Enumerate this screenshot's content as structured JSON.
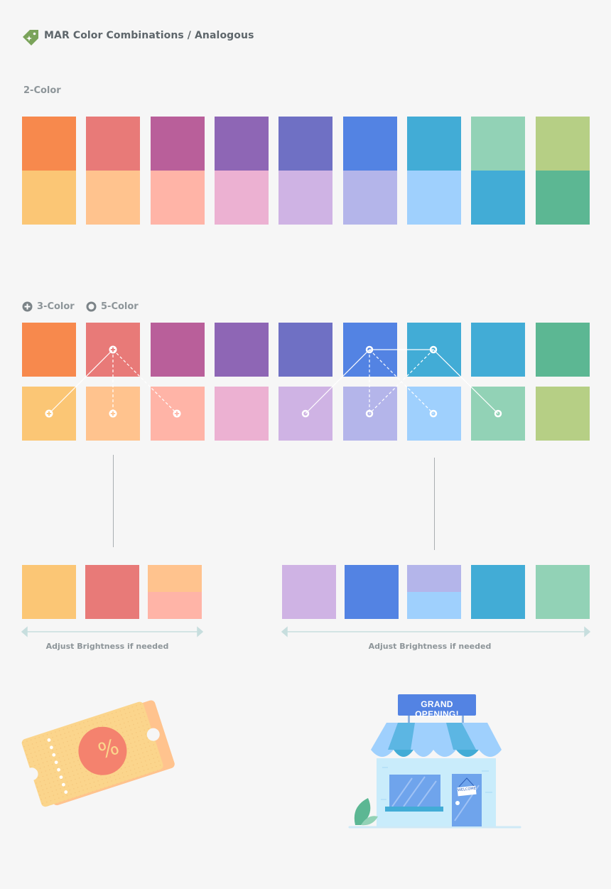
{
  "header": {
    "title": "MAR Color Combinations / Analogous",
    "tag_icon": "tag-icon",
    "tag_color": "#7aa35a"
  },
  "two_color": {
    "label": "2-Color",
    "pairs": [
      {
        "top": "#f7894d",
        "bottom": "#fbc675"
      },
      {
        "top": "#e87a78",
        "bottom": "#ffc38e"
      },
      {
        "top": "#b95f9a",
        "bottom": "#ffb4a7"
      },
      {
        "top": "#8e66b5",
        "bottom": "#ecb1d2"
      },
      {
        "top": "#6f70c4",
        "bottom": "#cfb3e4"
      },
      {
        "top": "#5383e3",
        "bottom": "#b4b5ea"
      },
      {
        "top": "#42acd6",
        "bottom": "#9fd0fd"
      },
      {
        "top": "#92d2b6",
        "bottom": "#42acd6"
      },
      {
        "top": "#b6cf85",
        "bottom": "#5cb793"
      }
    ]
  },
  "multi_color": {
    "legend_3": "3-Color",
    "legend_5": "5-Color",
    "legend_3_icon": "plus-circle-icon",
    "legend_5_icon": "ring-icon",
    "top_row": [
      "#f7894d",
      "#e87a78",
      "#b95f9a",
      "#8e66b5",
      "#6f70c4",
      "#5383e3",
      "#42acd6",
      "#42acd6",
      "#5cb793"
    ],
    "bottom_row": [
      "#fbc675",
      "#ffc38e",
      "#ffb4a7",
      "#ecb1d2",
      "#cfb3e4",
      "#b4b5ea",
      "#9fd0fd",
      "#92d2b6",
      "#b6cf85"
    ]
  },
  "result_3": {
    "swatches": [
      {
        "colors": [
          "#fbc675"
        ]
      },
      {
        "colors": [
          "#e87a78"
        ]
      },
      {
        "colors": [
          "#ffc38e",
          "#ffb4a7"
        ]
      }
    ],
    "caption": "Adjust Brightness if needed"
  },
  "result_5": {
    "swatches": [
      {
        "colors": [
          "#cfb3e4"
        ]
      },
      {
        "colors": [
          "#5383e3"
        ]
      },
      {
        "colors": [
          "#b4b5ea",
          "#9fd0fd"
        ]
      },
      {
        "colors": [
          "#42acd6"
        ]
      },
      {
        "colors": [
          "#92d2b6"
        ]
      }
    ],
    "caption": "Adjust Brightness if needed"
  },
  "illustrations": {
    "coupon": {
      "icon": "coupon-icon",
      "symbol": "%"
    },
    "storefront": {
      "icon": "storefront-icon",
      "sign": "GRAND OPENING!",
      "door_sign": "WELCOME"
    }
  }
}
